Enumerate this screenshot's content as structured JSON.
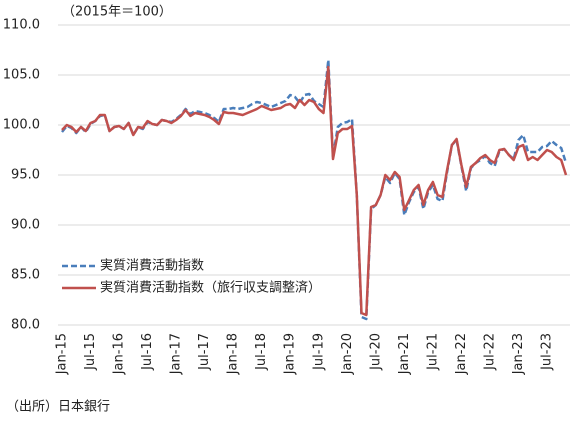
{
  "chart_data": {
    "type": "line",
    "annotations": [
      "（2015年＝100）",
      "（出所）日本銀行"
    ],
    "categories": [
      "Jan-15",
      null,
      null,
      null,
      null,
      null,
      "Jul-15",
      null,
      null,
      null,
      null,
      null,
      "Jan-16",
      null,
      null,
      null,
      null,
      null,
      "Jul-16",
      null,
      null,
      null,
      null,
      null,
      "Jan-17",
      null,
      null,
      null,
      null,
      null,
      "Jul-17",
      null,
      null,
      null,
      null,
      null,
      "Jan-18",
      null,
      null,
      null,
      null,
      null,
      "Jul-18",
      null,
      null,
      null,
      null,
      null,
      "Jan-19",
      null,
      null,
      null,
      null,
      null,
      "Jul-19",
      null,
      null,
      null,
      null,
      null,
      "Jan-20",
      null,
      null,
      null,
      null,
      null,
      "Jul-20",
      null,
      null,
      null,
      null,
      null,
      "Jan-21",
      null,
      null,
      null,
      null,
      null,
      "Jul-21",
      null,
      null,
      null,
      null,
      null,
      "Jan-22",
      null,
      null,
      null,
      null,
      null,
      "Jul-22",
      null,
      null,
      null,
      null,
      null,
      "Jan-23",
      null,
      null,
      null,
      null,
      null,
      "Jul-23",
      null,
      null,
      null,
      null
    ],
    "series": [
      {
        "name": "実質消費活動指数",
        "color": "#4a7ebb",
        "dashed": true,
        "values": [
          99.3,
          99.9,
          99.7,
          99.2,
          99.8,
          99.3,
          100.1,
          100.4,
          100.9,
          101.0,
          99.4,
          99.8,
          99.9,
          99.6,
          100.2,
          99.0,
          99.8,
          99.6,
          100.3,
          100.1,
          100.0,
          100.5,
          100.4,
          100.3,
          100.6,
          101.0,
          101.6,
          101.1,
          101.4,
          101.3,
          101.2,
          101.0,
          100.7,
          100.3,
          101.6,
          101.6,
          101.7,
          101.6,
          101.7,
          101.8,
          102.1,
          102.3,
          102.2,
          102.0,
          101.8,
          102.0,
          102.2,
          102.4,
          103.0,
          102.8,
          102.2,
          103.0,
          103.1,
          102.4,
          102.1,
          101.8,
          106.5,
          96.8,
          99.8,
          100.2,
          100.3,
          100.6,
          93.0,
          80.8,
          80.6,
          91.6,
          92.0,
          93.0,
          94.8,
          94.2,
          95.2,
          94.6,
          91.0,
          92.3,
          93.3,
          93.8,
          91.6,
          93.3,
          94.0,
          92.6,
          92.4,
          95.3,
          98.0,
          98.5,
          95.9,
          93.4,
          95.7,
          96.2,
          96.5,
          96.9,
          96.2,
          95.9,
          97.4,
          97.6,
          97.0,
          96.6,
          98.5,
          99.0,
          97.3,
          97.3,
          97.3,
          97.8,
          97.9,
          98.4,
          98.0,
          97.7,
          96.2
        ]
      },
      {
        "name": "実質消費活動指数（旅行収支調整済）",
        "color": "#c0504d",
        "dashed": false,
        "values": [
          99.5,
          100.0,
          99.8,
          99.3,
          99.8,
          99.4,
          100.2,
          100.4,
          101.0,
          101.0,
          99.4,
          99.8,
          99.9,
          99.6,
          100.2,
          99.0,
          99.8,
          99.7,
          100.4,
          100.1,
          100.0,
          100.5,
          100.4,
          100.2,
          100.5,
          100.9,
          101.5,
          100.9,
          101.2,
          101.1,
          101.0,
          100.8,
          100.5,
          100.1,
          101.3,
          101.2,
          101.2,
          101.1,
          101.0,
          101.2,
          101.4,
          101.6,
          101.9,
          101.7,
          101.5,
          101.6,
          101.7,
          102.0,
          102.1,
          101.7,
          102.5,
          102.0,
          102.5,
          102.3,
          101.6,
          101.2,
          105.8,
          96.6,
          99.2,
          99.6,
          99.6,
          99.9,
          93.0,
          81.2,
          81.0,
          91.8,
          92.0,
          93.0,
          95.0,
          94.5,
          95.3,
          94.8,
          91.5,
          92.5,
          93.5,
          94.0,
          92.0,
          93.5,
          94.3,
          93.0,
          92.8,
          95.5,
          98.0,
          98.6,
          96.0,
          93.8,
          95.8,
          96.2,
          96.7,
          97.0,
          96.5,
          96.2,
          97.5,
          97.6,
          97.0,
          96.5,
          97.8,
          98.0,
          96.5,
          96.8,
          96.5,
          97.0,
          97.5,
          97.3,
          96.8,
          96.5,
          95.0
        ]
      }
    ],
    "ylim": [
      80,
      110
    ],
    "yticks": [
      {
        "value": 80,
        "label": "80.0"
      },
      {
        "value": 85,
        "label": "85.0"
      },
      {
        "value": 90,
        "label": "90.0"
      },
      {
        "value": 95,
        "label": "95.0"
      },
      {
        "value": 100,
        "label": "100.0"
      },
      {
        "value": 105,
        "label": "105.0"
      },
      {
        "value": 110,
        "label": "110.0"
      }
    ],
    "grid": true
  }
}
